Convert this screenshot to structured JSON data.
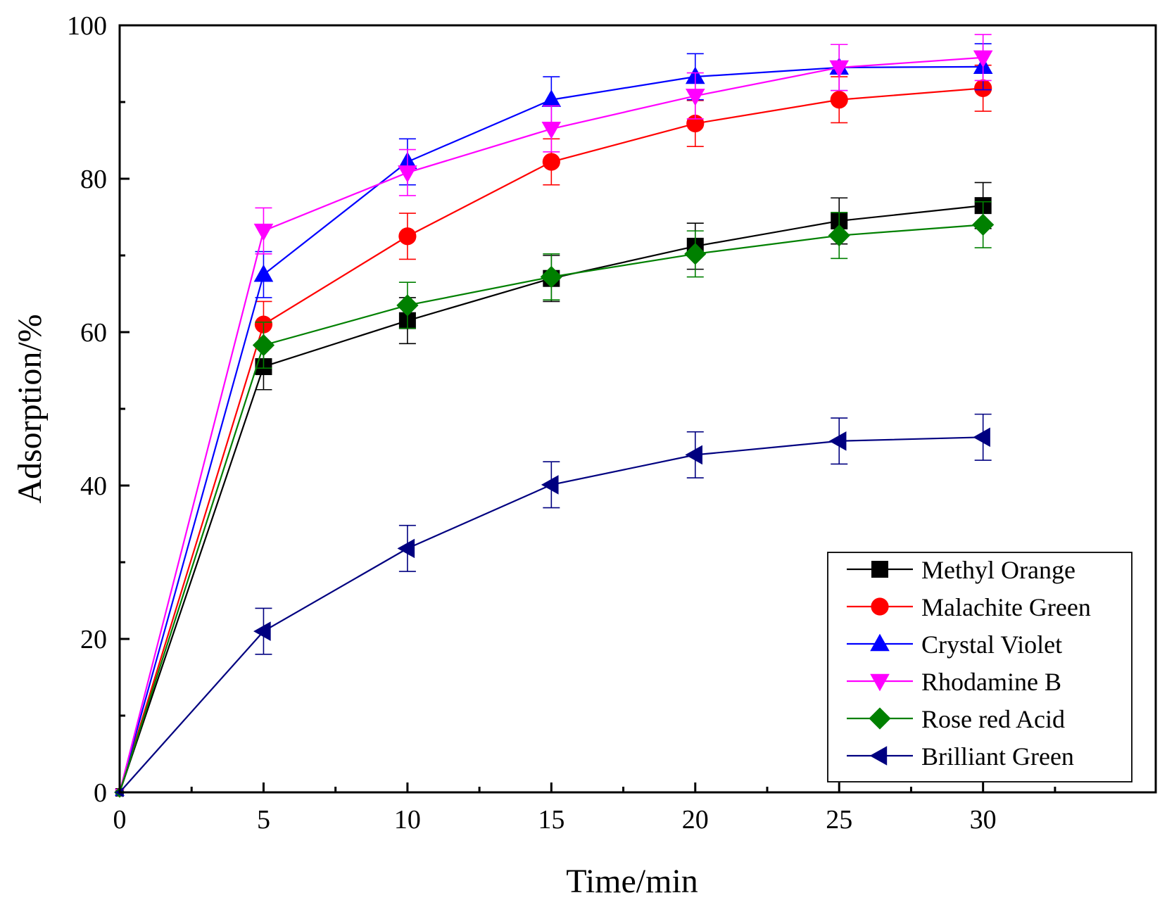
{
  "chart_data": {
    "type": "line",
    "title": "",
    "xlabel": "Time/min",
    "ylabel": "Adsorption/%",
    "xlim": [
      0,
      36
    ],
    "ylim": [
      0,
      100
    ],
    "x_ticks": [
      0,
      5,
      10,
      15,
      20,
      25,
      30
    ],
    "x_tick_labels": [
      "0",
      "5",
      "10",
      "15",
      "20",
      "25",
      "30"
    ],
    "y_ticks": [
      0,
      20,
      40,
      60,
      80,
      100
    ],
    "y_tick_labels": [
      "0",
      "20",
      "40",
      "60",
      "80",
      "100"
    ],
    "x_minor_ticks": [
      2.5,
      7.5,
      12.5,
      17.5,
      22.5,
      27.5,
      32.5
    ],
    "y_minor_ticks": [
      10,
      30,
      50,
      70,
      90
    ],
    "grid": false,
    "legend_position": "bottom-right",
    "x": [
      0,
      5,
      10,
      15,
      20,
      25,
      30
    ],
    "series": [
      {
        "name": "Methyl Orange",
        "color": "#000000",
        "marker": "square",
        "values": [
          0,
          55.5,
          61.5,
          67.0,
          71.2,
          74.5,
          76.5
        ],
        "errors": [
          0,
          3,
          3,
          3,
          3,
          3,
          3
        ]
      },
      {
        "name": "Malachite Green",
        "color": "#ff0000",
        "marker": "circle",
        "values": [
          0,
          61.0,
          72.5,
          82.2,
          87.2,
          90.3,
          91.8
        ],
        "errors": [
          0,
          3,
          3,
          3,
          3,
          3,
          3
        ]
      },
      {
        "name": "Crystal Violet",
        "color": "#0000ff",
        "marker": "triangle-up",
        "values": [
          0,
          67.5,
          82.2,
          90.3,
          93.3,
          94.5,
          94.6
        ],
        "errors": [
          0,
          3,
          3,
          3,
          3,
          3,
          3
        ]
      },
      {
        "name": "Rhodamine B",
        "color": "#ff00ff",
        "marker": "triangle-down",
        "values": [
          0,
          73.2,
          80.8,
          86.5,
          90.8,
          94.5,
          95.8
        ],
        "errors": [
          0,
          3,
          3,
          3,
          3,
          3,
          3
        ]
      },
      {
        "name": "Rose red Acid",
        "color": "#008000",
        "marker": "diamond",
        "values": [
          0,
          58.3,
          63.5,
          67.2,
          70.2,
          72.6,
          74.0
        ],
        "errors": [
          0,
          3,
          3,
          3,
          3,
          3,
          3
        ]
      },
      {
        "name": "Brilliant Green",
        "color": "#000080",
        "marker": "triangle-left",
        "values": [
          0,
          21.0,
          31.8,
          40.1,
          44.0,
          45.8,
          46.3
        ],
        "errors": [
          0,
          3,
          3,
          3,
          3,
          3,
          3
        ]
      }
    ]
  }
}
